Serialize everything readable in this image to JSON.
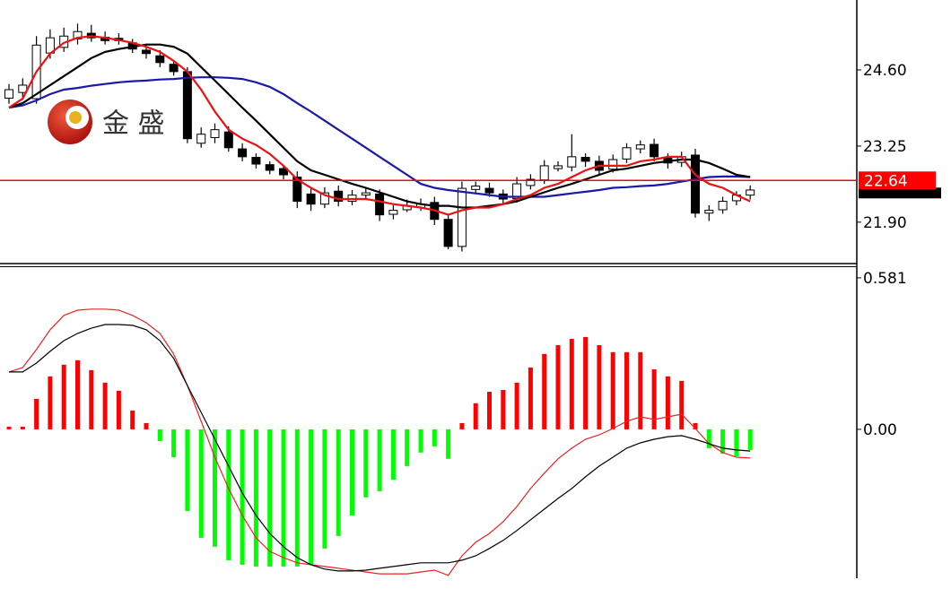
{
  "watermark": "金 盛",
  "chart_data": [
    {
      "type": "candlestick",
      "ylim": [
        21.15,
        25.84
      ],
      "yticks": [
        {
          "value": 21.9,
          "label": "21.90"
        },
        23.25,
        {
          "value": 24.6,
          "label": "24.60"
        }
      ],
      "price_line": 22.64,
      "price_line_color": "#ff0000",
      "up_color": "#ffffff",
      "down_color": "#000000",
      "open": [
        24.1,
        24.2,
        24.09,
        24.9,
        25.0,
        25.15,
        25.25,
        25.18,
        25.16,
        25.08,
        24.95,
        24.85,
        24.7,
        24.57,
        23.3,
        23.4,
        23.5,
        23.2,
        23.05,
        22.92,
        22.85,
        22.7,
        22.4,
        22.22,
        22.45,
        22.27,
        22.38,
        22.4,
        22.04,
        22.12,
        22.16,
        22.25,
        21.95,
        21.47,
        22.48,
        22.5,
        22.4,
        22.32,
        22.55,
        22.65,
        22.85,
        22.88,
        23.05,
        22.98,
        22.84,
        23.02,
        23.2,
        23.28,
        23.05,
        22.96,
        23.09,
        22.06,
        22.12,
        22.28,
        22.38
      ],
      "high": [
        24.35,
        24.45,
        25.2,
        25.32,
        25.35,
        25.42,
        25.4,
        25.28,
        25.25,
        25.15,
        25.05,
        24.95,
        24.75,
        24.65,
        23.58,
        23.65,
        23.6,
        23.3,
        23.12,
        22.98,
        22.9,
        22.8,
        22.5,
        22.52,
        22.55,
        22.47,
        22.5,
        22.48,
        22.2,
        22.3,
        22.32,
        22.35,
        22.05,
        22.62,
        22.62,
        22.6,
        22.48,
        22.7,
        22.75,
        23.0,
        22.98,
        23.46,
        23.12,
        23.08,
        23.1,
        23.3,
        23.35,
        23.38,
        23.12,
        23.15,
        23.2,
        22.2,
        22.35,
        22.45,
        22.55
      ],
      "low": [
        24.0,
        24.1,
        24.0,
        24.8,
        24.92,
        25.05,
        25.1,
        25.05,
        25.05,
        24.9,
        24.8,
        24.65,
        24.5,
        23.3,
        23.22,
        23.3,
        23.15,
        22.98,
        22.85,
        22.75,
        22.66,
        22.15,
        22.1,
        22.15,
        22.18,
        22.2,
        22.3,
        21.92,
        21.95,
        22.08,
        22.1,
        21.85,
        21.42,
        21.38,
        22.4,
        22.35,
        22.22,
        22.25,
        22.48,
        22.58,
        22.8,
        22.8,
        22.88,
        22.75,
        22.78,
        22.95,
        23.12,
        22.98,
        22.85,
        22.88,
        21.98,
        21.92,
        22.05,
        22.2,
        22.3
      ],
      "close": [
        24.25,
        24.33,
        25.04,
        25.17,
        25.2,
        25.28,
        25.17,
        25.12,
        25.12,
        24.97,
        24.89,
        24.73,
        24.57,
        23.38,
        23.46,
        23.54,
        23.22,
        23.06,
        22.93,
        22.82,
        22.74,
        22.27,
        22.22,
        22.42,
        22.27,
        22.38,
        22.42,
        22.03,
        22.11,
        22.19,
        22.22,
        21.95,
        21.47,
        22.5,
        22.54,
        22.42,
        22.31,
        22.58,
        22.66,
        22.9,
        22.9,
        23.06,
        22.98,
        22.82,
        23.01,
        23.22,
        23.27,
        23.06,
        22.95,
        23.06,
        22.06,
        22.11,
        22.27,
        22.38,
        22.47
      ],
      "series": [
        {
          "color": "#1a1aa8",
          "values": [
            23.93,
            23.97,
            24.06,
            24.17,
            24.25,
            24.28,
            24.32,
            24.35,
            24.38,
            24.4,
            24.41,
            24.43,
            24.44,
            24.46,
            24.47,
            24.47,
            24.46,
            24.44,
            24.38,
            24.3,
            24.17,
            24.01,
            23.86,
            23.7,
            23.54,
            23.38,
            23.22,
            23.06,
            22.9,
            22.74,
            22.58,
            22.51,
            22.47,
            22.44,
            22.41,
            22.38,
            22.35,
            22.35,
            22.35,
            22.35,
            22.38,
            22.41,
            22.44,
            22.47,
            22.51,
            22.52,
            22.54,
            22.55,
            22.58,
            22.62,
            22.66,
            22.7,
            22.71,
            22.71,
            22.7
          ]
        },
        {
          "color": "#000000",
          "values": [
            23.93,
            24.01,
            24.17,
            24.33,
            24.49,
            24.65,
            24.81,
            24.92,
            24.97,
            25.01,
            25.05,
            25.05,
            25.01,
            24.89,
            24.65,
            24.41,
            24.17,
            23.93,
            23.7,
            23.46,
            23.22,
            22.98,
            22.82,
            22.74,
            22.66,
            22.58,
            22.51,
            22.43,
            22.35,
            22.27,
            22.22,
            22.19,
            22.19,
            22.16,
            22.16,
            22.19,
            22.22,
            22.27,
            22.35,
            22.43,
            22.51,
            22.58,
            22.66,
            22.74,
            22.82,
            22.85,
            22.9,
            22.95,
            22.98,
            23.01,
            23.01,
            22.95,
            22.85,
            22.74,
            22.7
          ]
        },
        {
          "color": "#ee1111",
          "values": [
            23.93,
            24.09,
            24.57,
            24.89,
            25.08,
            25.17,
            25.2,
            25.17,
            25.13,
            25.08,
            25.01,
            24.92,
            24.76,
            24.57,
            24.25,
            23.86,
            23.54,
            23.38,
            23.27,
            23.11,
            22.9,
            22.66,
            22.51,
            22.38,
            22.31,
            22.31,
            22.31,
            22.27,
            22.22,
            22.19,
            22.16,
            22.11,
            22.03,
            22.11,
            22.16,
            22.16,
            22.22,
            22.31,
            22.38,
            22.51,
            22.58,
            22.7,
            22.82,
            22.9,
            22.9,
            22.9,
            22.98,
            23.01,
            23.06,
            23.06,
            22.74,
            22.58,
            22.51,
            22.38,
            22.27
          ]
        }
      ]
    },
    {
      "type": "macd",
      "ylim": [
        -0.571,
        0.622
      ],
      "yticks": [
        {
          "value": 0,
          "label": "0.00"
        },
        0.581
      ],
      "up_color": "#ff0000",
      "down_color": "#00ff00",
      "values": [
        0.01,
        0.01,
        0.117,
        0.203,
        0.248,
        0.265,
        0.227,
        0.179,
        0.148,
        0.072,
        0.024,
        -0.045,
        -0.107,
        -0.313,
        -0.416,
        -0.45,
        -0.502,
        -0.519,
        -0.526,
        -0.526,
        -0.526,
        -0.526,
        -0.519,
        -0.457,
        -0.409,
        -0.33,
        -0.261,
        -0.237,
        -0.193,
        -0.141,
        -0.089,
        -0.065,
        -0.113,
        0.024,
        0.1,
        0.144,
        0.151,
        0.179,
        0.237,
        0.289,
        0.323,
        0.347,
        0.354,
        0.323,
        0.296,
        0.296,
        0.296,
        0.23,
        0.203,
        0.186,
        0.024,
        -0.072,
        -0.093,
        -0.103,
        -0.079
      ],
      "series": [
        {
          "color": "#ee2222",
          "values": [
            0.22,
            0.237,
            0.306,
            0.382,
            0.437,
            0.457,
            0.461,
            0.461,
            0.457,
            0.437,
            0.409,
            0.368,
            0.289,
            0.168,
            0.031,
            -0.107,
            -0.227,
            -0.33,
            -0.416,
            -0.468,
            -0.492,
            -0.512,
            -0.519,
            -0.526,
            -0.533,
            -0.54,
            -0.547,
            -0.554,
            -0.554,
            -0.554,
            -0.547,
            -0.54,
            -0.56,
            -0.485,
            -0.433,
            -0.399,
            -0.354,
            -0.296,
            -0.227,
            -0.168,
            -0.113,
            -0.072,
            -0.038,
            -0.021,
            0.003,
            0.031,
            0.048,
            0.038,
            0.048,
            0.058,
            0.003,
            -0.055,
            -0.089,
            -0.107,
            -0.11
          ]
        },
        {
          "color": "#000000",
          "values": [
            0.22,
            0.22,
            0.254,
            0.299,
            0.34,
            0.368,
            0.388,
            0.402,
            0.402,
            0.399,
            0.382,
            0.34,
            0.272,
            0.168,
            0.065,
            -0.038,
            -0.141,
            -0.244,
            -0.33,
            -0.399,
            -0.45,
            -0.492,
            -0.519,
            -0.536,
            -0.543,
            -0.543,
            -0.54,
            -0.533,
            -0.526,
            -0.519,
            -0.512,
            -0.512,
            -0.512,
            -0.502,
            -0.485,
            -0.457,
            -0.426,
            -0.388,
            -0.347,
            -0.306,
            -0.265,
            -0.227,
            -0.182,
            -0.141,
            -0.107,
            -0.072,
            -0.052,
            -0.038,
            -0.028,
            -0.024,
            -0.038,
            -0.055,
            -0.072,
            -0.079,
            -0.083
          ]
        }
      ]
    }
  ]
}
